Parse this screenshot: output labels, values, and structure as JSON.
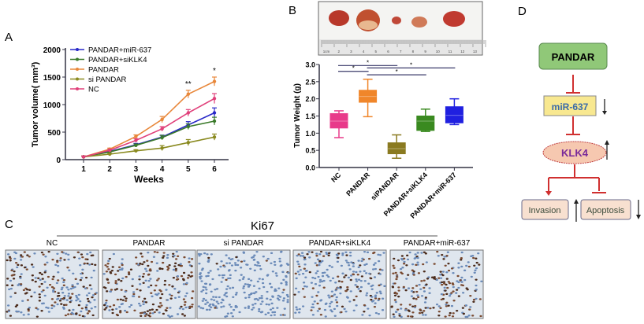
{
  "panel_labels": {
    "a": "A",
    "b": "B",
    "c": "C",
    "d": "D"
  },
  "chart_data": [
    {
      "type": "line",
      "xlabel": "Weeks",
      "ylabel": "Tumor volume( mm³)",
      "x": [
        1,
        2,
        3,
        4,
        5,
        6
      ],
      "ylim": [
        0,
        2000
      ],
      "yticks": [
        "0",
        "500",
        "1000",
        "1500",
        "2000"
      ],
      "xticks": [
        "1",
        "2",
        "3",
        "4",
        "5",
        "6"
      ],
      "legend": "top-left",
      "series": [
        {
          "name": "PANDAR+miR-637",
          "color": "#2828c8",
          "values": [
            50,
            150,
            270,
            410,
            630,
            850
          ],
          "err": [
            15,
            20,
            25,
            35,
            60,
            90
          ]
        },
        {
          "name": "PANDAR+siKLK4",
          "color": "#3a7a2a",
          "values": [
            50,
            140,
            260,
            400,
            600,
            700
          ],
          "err": [
            15,
            20,
            25,
            40,
            50,
            70
          ]
        },
        {
          "name": "PANDAR",
          "color": "#e8873a",
          "values": [
            50,
            190,
            420,
            730,
            1190,
            1420
          ],
          "err": [
            15,
            20,
            30,
            55,
            70,
            80
          ]
        },
        {
          "name": "si PANDAR",
          "color": "#8a8a20",
          "values": [
            50,
            100,
            160,
            210,
            310,
            410
          ],
          "err": [
            15,
            15,
            20,
            45,
            55,
            55
          ]
        },
        {
          "name": "NC",
          "color": "#e0407a",
          "values": [
            50,
            170,
            350,
            560,
            850,
            1110
          ],
          "err": [
            15,
            20,
            30,
            40,
            60,
            90
          ]
        }
      ],
      "annotations": [
        {
          "x": 5,
          "text": "**"
        },
        {
          "x": 6,
          "text": "*"
        }
      ]
    },
    {
      "type": "box",
      "ylabel": "Tumor Weight (g)",
      "ylim": [
        0,
        3
      ],
      "yticks": [
        "0.0",
        "0.5",
        "1.0",
        "1.5",
        "2.0",
        "2.5",
        "3.0"
      ],
      "categories": [
        "NC",
        "PANDAR",
        "siPANDAR",
        "PANDAR+siKLK4",
        "PANDAR+miR-637"
      ],
      "colors": [
        "#e83a8a",
        "#f0862a",
        "#8a7a20",
        "#3a8a20",
        "#2020e0"
      ],
      "boxes": [
        {
          "min": 0.87,
          "q1": 1.15,
          "median": 1.35,
          "q3": 1.57,
          "max": 1.65
        },
        {
          "min": 1.48,
          "q1": 1.9,
          "median": 2.07,
          "q3": 2.25,
          "max": 2.57
        },
        {
          "min": 0.27,
          "q1": 0.4,
          "median": 0.55,
          "q3": 0.72,
          "max": 0.95
        },
        {
          "min": 1.05,
          "q1": 1.08,
          "median": 1.35,
          "q3": 1.5,
          "max": 1.7
        },
        {
          "min": 1.25,
          "q1": 1.3,
          "median": 1.52,
          "q3": 1.77,
          "max": 2.0
        }
      ],
      "significance": [
        {
          "from": 0,
          "to": 2,
          "level": 2.97,
          "text": "*"
        },
        {
          "from": 0,
          "to": 1,
          "level": 2.8,
          "text": "*"
        },
        {
          "from": 1,
          "to": 4,
          "level": 2.9,
          "text": "*"
        },
        {
          "from": 1,
          "to": 3,
          "level": 2.7,
          "text": "*"
        }
      ]
    }
  ],
  "photo": {
    "ruler_labels": [
      "1cm",
      "2",
      "3",
      "4",
      "5",
      "6",
      "7",
      "8",
      "9",
      "10",
      "11",
      "12",
      "13"
    ]
  },
  "panel_c": {
    "title": "Ki67",
    "groups": [
      "NC",
      "PANDAR",
      "si PANDAR",
      "PANDAR+siKLK4",
      "PANDAR+miR-637"
    ],
    "stain_density": [
      0.55,
      0.7,
      0.05,
      0.3,
      0.6
    ]
  },
  "panel_d": {
    "nodes": {
      "pandar": "PANDAR",
      "mir": "miR-637",
      "klk4": "KLK4",
      "invasion": "Invasion",
      "apoptosis": "Apoptosis"
    },
    "colors": {
      "pandar_fill": "#90c878",
      "mir_fill": "#f8e890",
      "mir_text": "#3a6aa8",
      "klk4_fill": "#f6c8b0",
      "klk4_text": "#7a2a9a",
      "outcome_fill": "#f8e0d0",
      "arrow": "#d03030"
    }
  }
}
